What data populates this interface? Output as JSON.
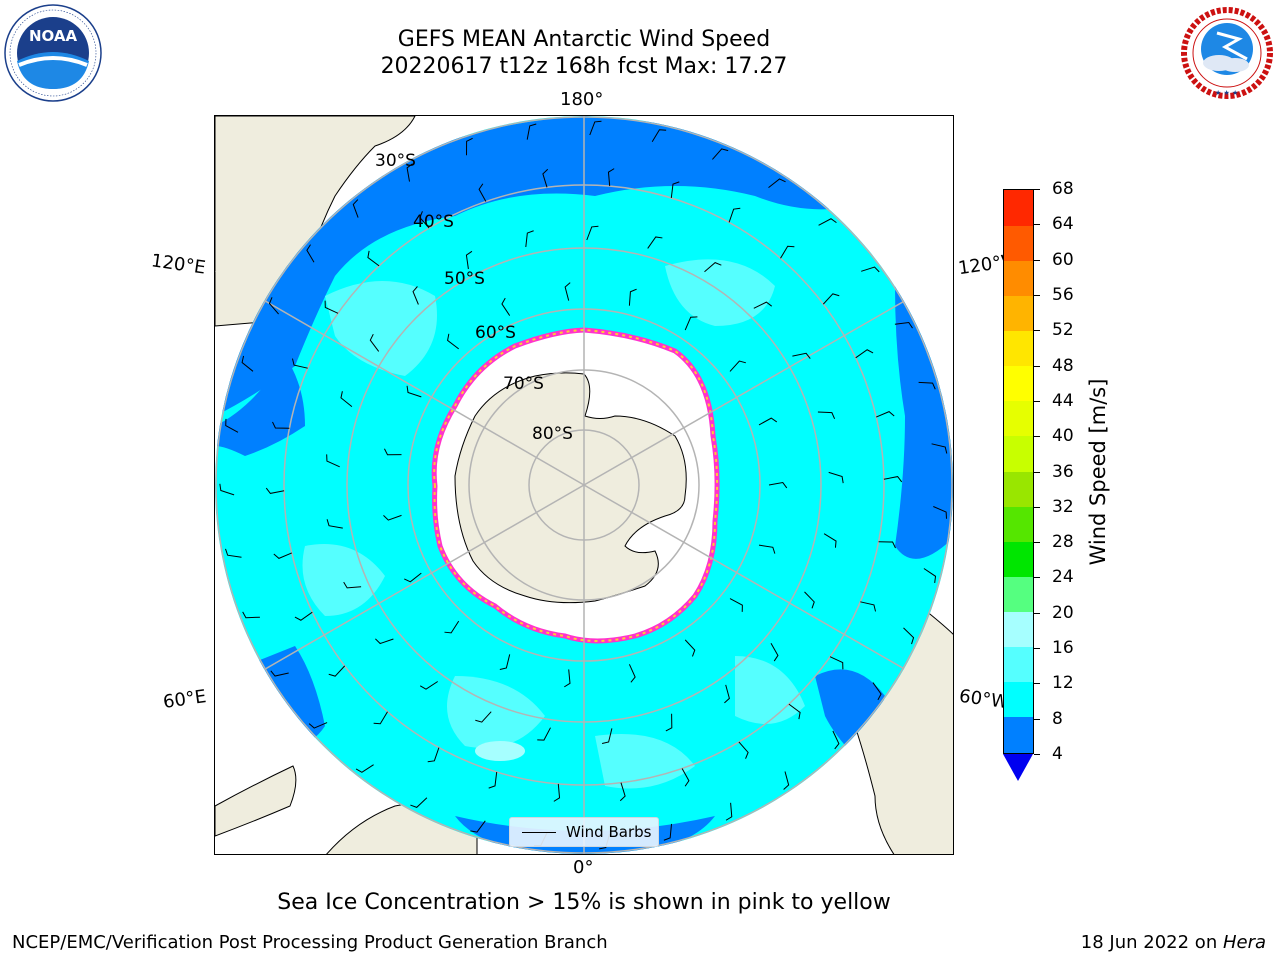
{
  "title": {
    "line1": "GEFS MEAN Antarctic Wind Speed",
    "line2": "20220617 t12z 168h fcst   Max: 17.27"
  },
  "logos": {
    "left": {
      "icon": "noaa-logo",
      "text": "NOAA",
      "ring_text": "NATIONAL OCEANIC AND ATMOSPHERIC ADMINISTRATION · U.S. DEPARTMENT OF COMMERCE"
    },
    "right": {
      "icon": "nws-logo",
      "ring_text": "NATIONAL WEATHER SERVICE"
    }
  },
  "map": {
    "projection": "south-polar-stereographic",
    "lon_labels": {
      "top": "180°",
      "bottom": "0°",
      "left_upper": "120°E",
      "left_lower": "60°E",
      "right_upper": "120°W",
      "right_lower": "60°W"
    },
    "lat_labels": [
      "30°S",
      "40°S",
      "50°S",
      "60°S",
      "70°S",
      "80°S"
    ],
    "legend_label": "Wind Barbs",
    "colors": {
      "ocean_blue": "#0080ff",
      "cyan": "#00ffff",
      "light_cyan": "#55ffff",
      "land": "#efedde",
      "ice_edge": "#ff33cc",
      "ice_yellow": "#ffcc33",
      "grid": "#b4b4b4"
    }
  },
  "colorbar": {
    "label": "Wind Speed [m/s]",
    "ticks": [
      "4",
      "8",
      "12",
      "16",
      "20",
      "24",
      "28",
      "32",
      "36",
      "40",
      "44",
      "48",
      "52",
      "56",
      "60",
      "64",
      "68"
    ],
    "colors": [
      "#0080ff",
      "#00ffff",
      "#55ffff",
      "#a6ffff",
      "#55ff80",
      "#00e600",
      "#55e600",
      "#99e600",
      "#c8ff00",
      "#e6ff00",
      "#ffff00",
      "#ffe600",
      "#ffb400",
      "#ff8c00",
      "#ff5a00",
      "#ff2800"
    ],
    "under_color": "#0000f0"
  },
  "subtitle": "Sea Ice Concentration > 15% is shown in pink to yellow",
  "footer": {
    "left": "NCEP/EMC/Verification Post Processing Product Generation Branch",
    "right_prefix": "18 Jun 2022 on ",
    "right_italic": "Hera"
  }
}
